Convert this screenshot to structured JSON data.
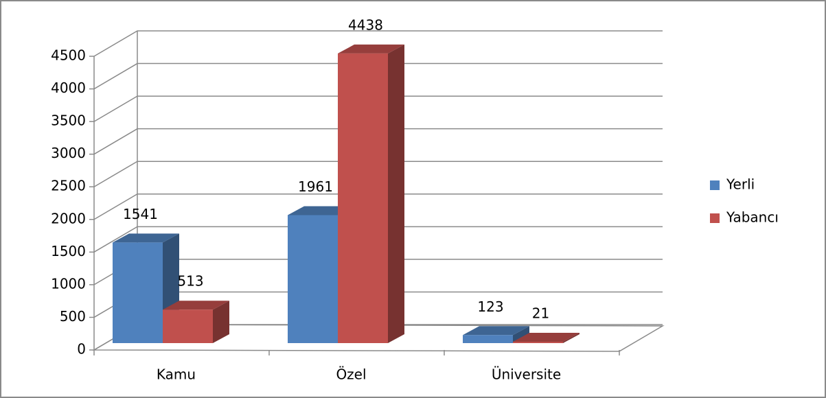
{
  "chart_data": {
    "type": "bar3d",
    "categories": [
      "Kamu",
      "Özel",
      "Üniversite"
    ],
    "series": [
      {
        "name": "Yerli",
        "color": "#4f81bd",
        "values": [
          1541,
          1961,
          123
        ]
      },
      {
        "name": "Yabancı",
        "color": "#c0504d",
        "values": [
          513,
          4438,
          21
        ]
      }
    ],
    "ylim": [
      0,
      4500
    ],
    "yticks": [
      0,
      500,
      1000,
      1500,
      2000,
      2500,
      3000,
      3500,
      4000,
      4500
    ],
    "grid": true,
    "legend": "right"
  }
}
